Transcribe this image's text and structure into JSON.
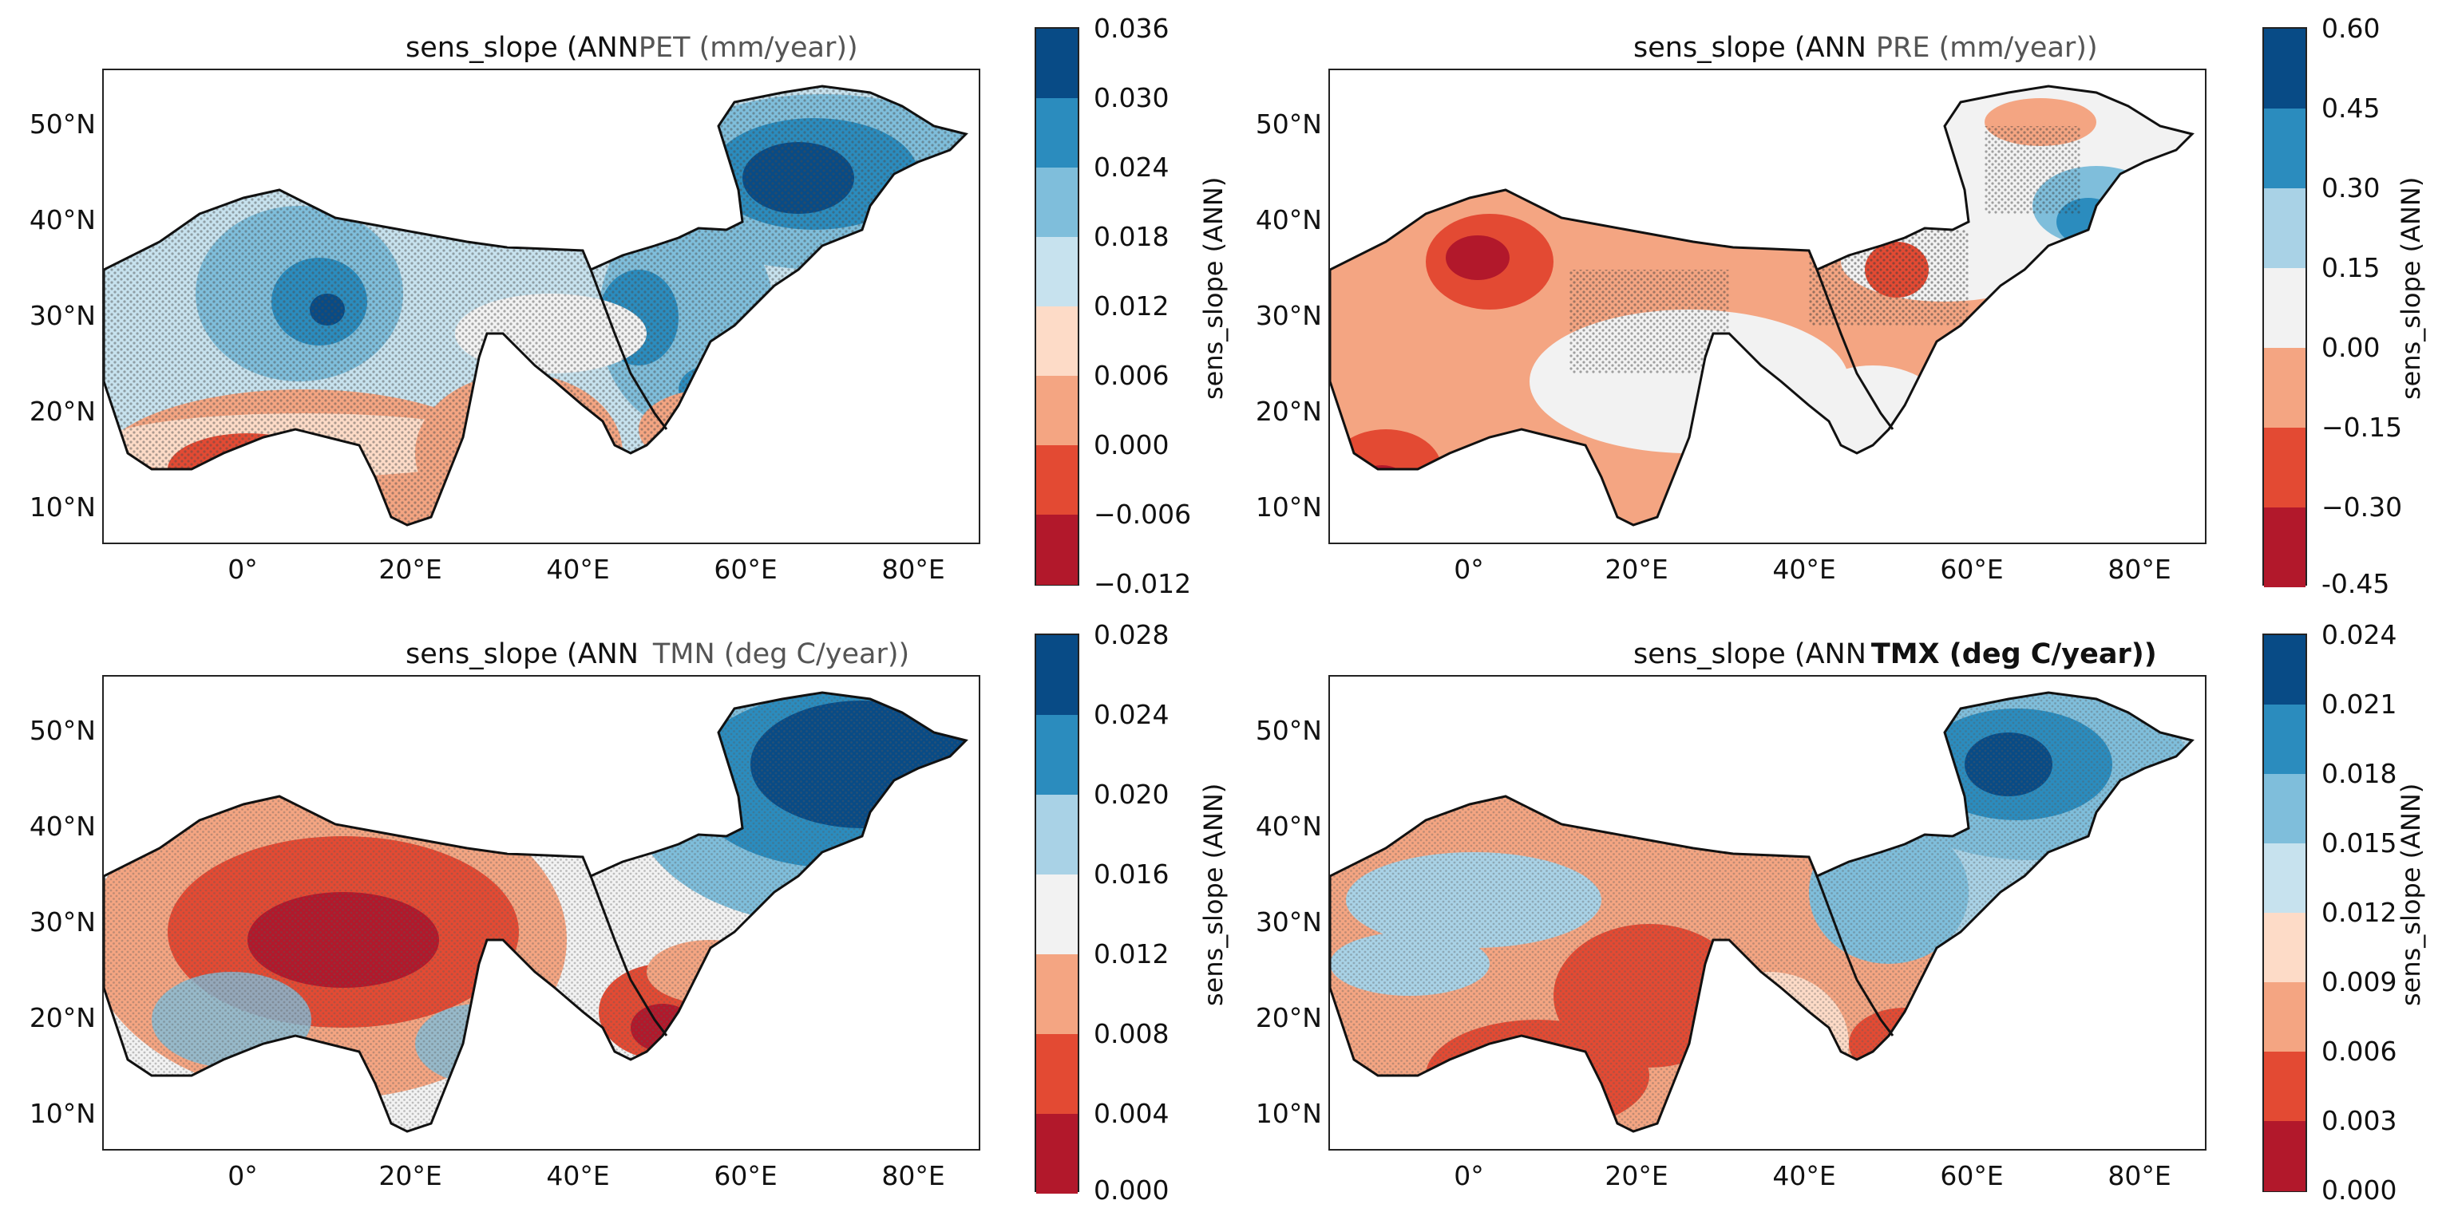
{
  "colors": {
    "scale": [
      "#b2182b",
      "#e34a33",
      "#f4a582",
      "#fddbc7",
      "#f2f2f2",
      "#c7e2ee",
      "#7fbedb",
      "#2b8cbe",
      "#084b86"
    ],
    "stipple": "#4a4a4a",
    "coast": "#111111"
  },
  "panels": [
    {
      "id": "pet",
      "title_prefix": "sens_slope (ANN",
      "title_var": "PET (mm/year))",
      "var_bold": false,
      "cbar_label": "sens_slope (ANN)",
      "cbar_ticks": [
        "0.036",
        "0.030",
        "0.024",
        "0.018",
        "0.012",
        "0.006",
        "0.000",
        "−0.006",
        "−0.012"
      ],
      "ylabels": [
        "50°N",
        "40°N",
        "30°N",
        "20°N",
        "10°N"
      ],
      "xlabels": [
        "0°",
        "20°E",
        "40°E",
        "60°E",
        "80°E"
      ]
    },
    {
      "id": "pre",
      "title_prefix": "sens_slope (ANN",
      "title_var": "PRE (mm/year))",
      "var_bold": false,
      "cbar_label": "sens_slope (ANN)",
      "cbar_ticks": [
        "0.60",
        "0.45",
        "0.30",
        "0.15",
        "0.00",
        "−0.15",
        "−0.30",
        "-0.45"
      ],
      "ylabels": [
        "50°N",
        "40°N",
        "30°N",
        "20°N",
        "10°N"
      ],
      "xlabels": [
        "0°",
        "20°E",
        "40°E",
        "60°E",
        "80°E"
      ]
    },
    {
      "id": "tmn",
      "title_prefix": "sens_slope (ANN",
      "title_var": "TMN (deg C/year))",
      "var_bold": false,
      "cbar_label": "sens_slope (ANN)",
      "cbar_ticks": [
        "0.028",
        "0.024",
        "0.020",
        "0.016",
        "0.012",
        "0.008",
        "0.004",
        "0.000"
      ],
      "ylabels": [
        "50°N",
        "40°N",
        "30°N",
        "20°N",
        "10°N"
      ],
      "xlabels": [
        "0°",
        "20°E",
        "40°E",
        "60°E",
        "80°E"
      ]
    },
    {
      "id": "tmx",
      "title_prefix": "sens_slope (ANN",
      "title_var": "TMX (deg C/year))",
      "var_bold": true,
      "cbar_label": "sens_slope (ANN)",
      "cbar_ticks": [
        "0.024",
        "0.021",
        "0.018",
        "0.015",
        "0.012",
        "0.009",
        "0.006",
        "0.003",
        "0.000"
      ],
      "ylabels": [
        "50°N",
        "40°N",
        "30°N",
        "20°N",
        "10°N"
      ],
      "xlabels": [
        "0°",
        "20°E",
        "40°E",
        "60°E",
        "80°E"
      ]
    }
  ]
}
